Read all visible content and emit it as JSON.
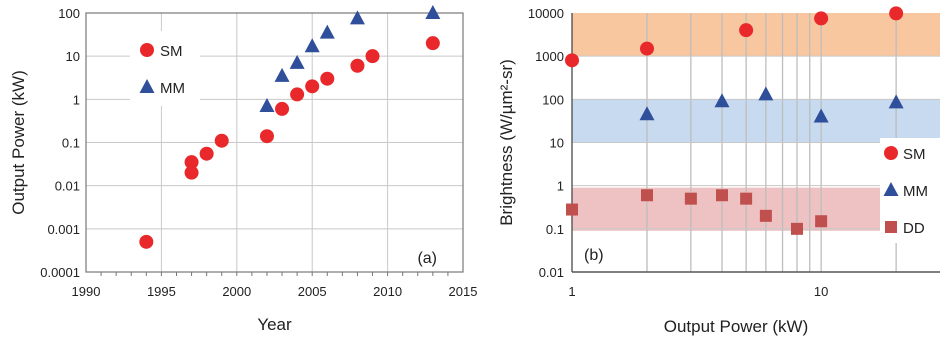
{
  "chart_data": [
    {
      "type": "scatter",
      "panel_label": "(a)",
      "xlabel": "Year",
      "ylabel": "Output Power (kW)",
      "xlim": [
        1990,
        2015
      ],
      "ylim": [
        0.0001,
        100
      ],
      "yscale": "log",
      "grid": true,
      "legend_position": "top-left",
      "xticks": [
        "1990",
        "1995",
        "2000",
        "2005",
        "2010",
        "2015"
      ],
      "yticks": [
        "0.0001",
        "0.001",
        "0.01",
        "0.1",
        "1",
        "10",
        "100"
      ],
      "series": [
        {
          "name": "SM",
          "marker": "circle",
          "color": "#e8282b",
          "points": [
            [
              1994,
              0.0005
            ],
            [
              1997,
              0.02
            ],
            [
              1997,
              0.035
            ],
            [
              1998,
              0.055
            ],
            [
              1999,
              0.11
            ],
            [
              2002,
              0.14
            ],
            [
              2003,
              0.6
            ],
            [
              2004,
              1.3
            ],
            [
              2005,
              2
            ],
            [
              2006,
              3
            ],
            [
              2008,
              6
            ],
            [
              2009,
              10
            ],
            [
              2013,
              20
            ]
          ]
        },
        {
          "name": "MM",
          "marker": "triangle",
          "color": "#2f4f9b",
          "points": [
            [
              2002,
              0.7
            ],
            [
              2003,
              3.5
            ],
            [
              2004,
              7
            ],
            [
              2005,
              17
            ],
            [
              2006,
              35
            ],
            [
              2008,
              75
            ],
            [
              2013,
              100
            ]
          ]
        }
      ]
    },
    {
      "type": "scatter",
      "panel_label": "(b)",
      "xlabel": "Output Power (kW)",
      "ylabel": "Brightness (W/µm²-sr)",
      "xlim": [
        1,
        30
      ],
      "xscale": "log",
      "ylim": [
        0.01,
        10000
      ],
      "yscale": "log",
      "grid": true,
      "legend_position": "right",
      "xticks": [
        "1",
        "10"
      ],
      "yticks": [
        "0.01",
        "0.1",
        "1",
        "10",
        "100",
        "1000",
        "10000"
      ],
      "bands": [
        {
          "series": "SM",
          "from": 1000,
          "to": 10000,
          "color": "#f8c7a0"
        },
        {
          "series": "MM",
          "from": 10,
          "to": 100,
          "color": "#c7daf0"
        },
        {
          "series": "DD",
          "from": 0.09,
          "to": 0.9,
          "color": "#eec2c2"
        }
      ],
      "series": [
        {
          "name": "SM",
          "marker": "circle",
          "color": "#e8282b",
          "points": [
            [
              1,
              800
            ],
            [
              2,
              1500
            ],
            [
              5,
              4000
            ],
            [
              10,
              7500
            ],
            [
              20,
              9800
            ]
          ]
        },
        {
          "name": "MM",
          "marker": "triangle",
          "color": "#2f4f9b",
          "points": [
            [
              2,
              45
            ],
            [
              4,
              90
            ],
            [
              6,
              130
            ],
            [
              10,
              40
            ],
            [
              20,
              85
            ]
          ]
        },
        {
          "name": "DD",
          "marker": "square",
          "color": "#c0504d",
          "points": [
            [
              1,
              0.28
            ],
            [
              2,
              0.6
            ],
            [
              3,
              0.5
            ],
            [
              4,
              0.6
            ],
            [
              5,
              0.5
            ],
            [
              6,
              0.2
            ],
            [
              8,
              0.1
            ],
            [
              10,
              0.15
            ]
          ]
        }
      ]
    }
  ]
}
